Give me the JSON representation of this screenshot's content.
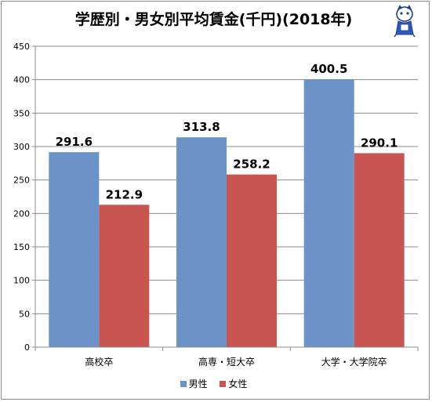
{
  "title": "学歴別・男女別平均賃金(千円)(2018年)",
  "colors": {
    "male": "#6b93c8",
    "female": "#c95552",
    "axis": "#8c8c8c",
    "grid": "#8c8c8c"
  },
  "chart_data": {
    "type": "bar",
    "title": "学歴別・男女別平均賃金(千円)(2018年)",
    "categories": [
      "高校卒",
      "高専・短大卒",
      "大学・大学院卒"
    ],
    "series": [
      {
        "name": "男性",
        "values": [
          291.6,
          313.8,
          400.5
        ]
      },
      {
        "name": "女性",
        "values": [
          212.9,
          258.2,
          290.1
        ]
      }
    ],
    "ylim": [
      0,
      450
    ],
    "yticks": [
      0,
      50,
      100,
      150,
      200,
      250,
      300,
      350,
      400,
      450
    ],
    "xlabel": "",
    "ylabel": "",
    "grid": true,
    "legend": "bottom"
  }
}
